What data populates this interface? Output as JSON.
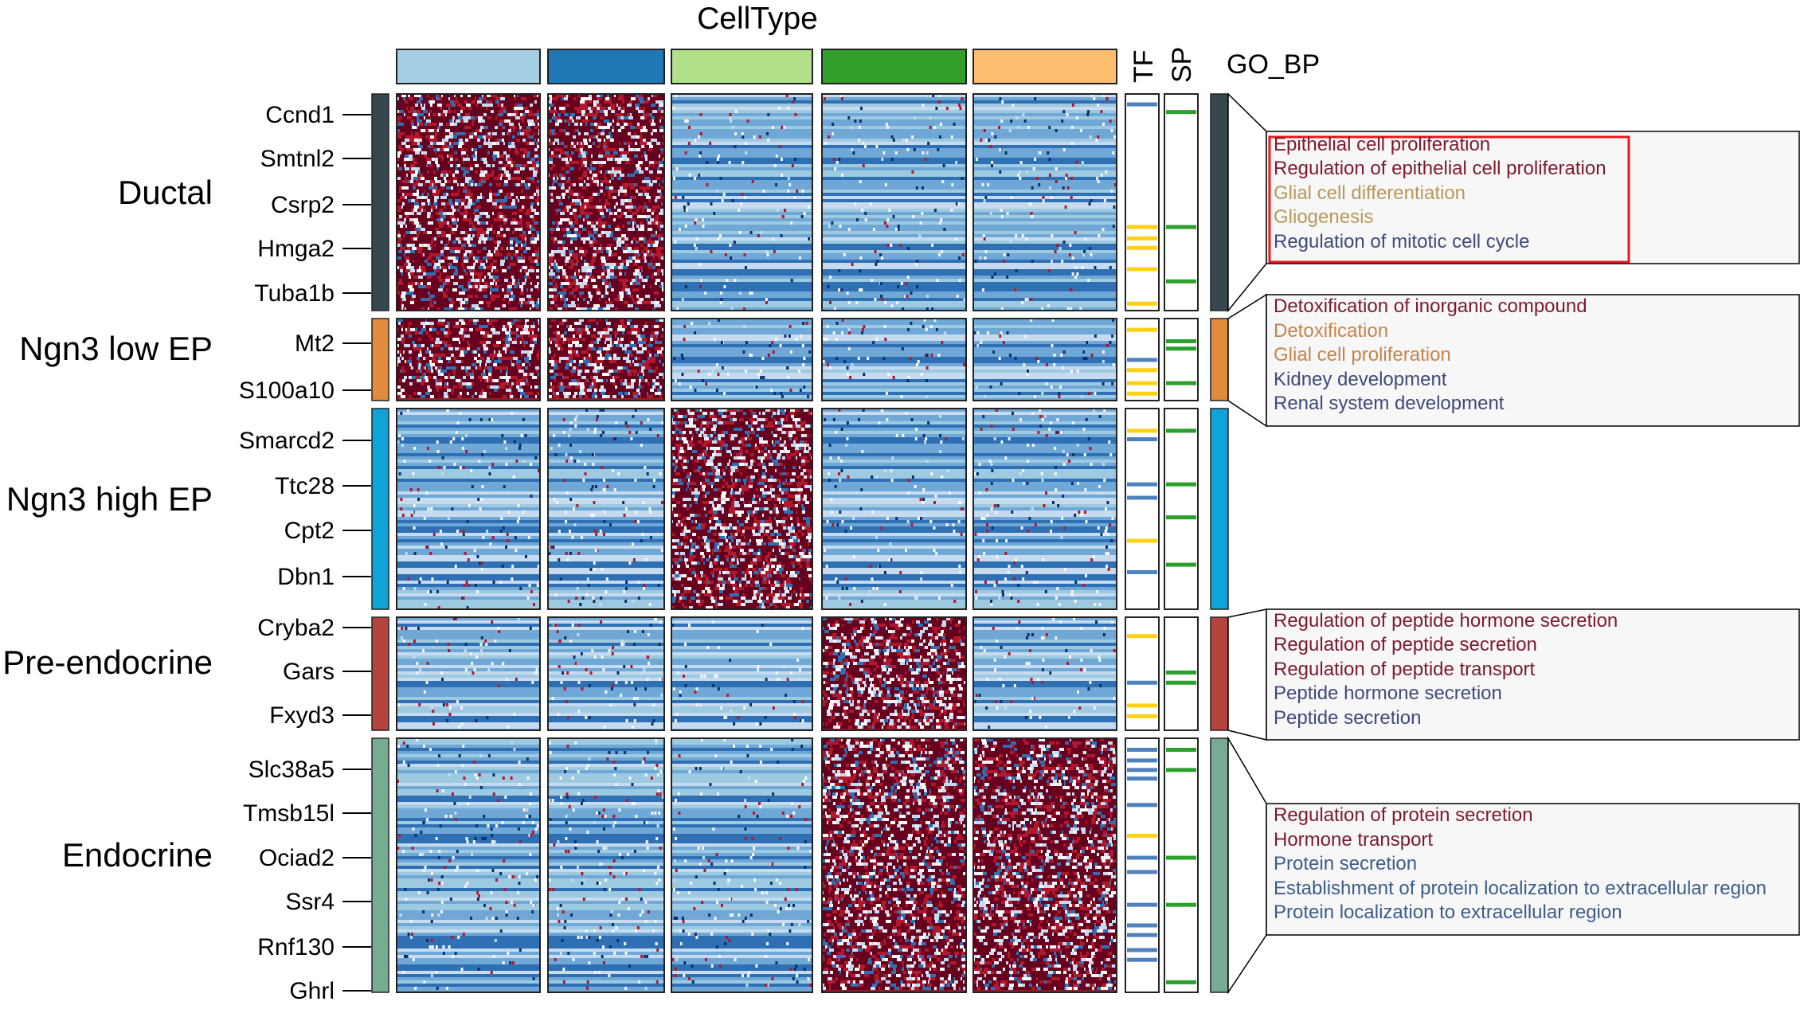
{
  "chart_data": {
    "type": "heatmap",
    "title": "CellType",
    "column_groups": [
      {
        "name": "Ductal",
        "color": "#a6cee3"
      },
      {
        "name": "Ngn3 low EP",
        "color": "#1f78b4"
      },
      {
        "name": "Ngn3 high EP",
        "color": "#b2df8a"
      },
      {
        "name": "Pre-endocrine",
        "color": "#33a02c"
      },
      {
        "name": "Endocrine",
        "color": "#fdbf6f"
      }
    ],
    "annotation_labels": {
      "tf": "TF",
      "sp": "SP",
      "go": "GO_BP"
    },
    "annotation_colors": {
      "tf_yes": "#fcd116",
      "tf_no": "#4f81bd",
      "sp": "#2ca02c"
    },
    "colorscale": [
      "#08306b",
      "#2f6fb3",
      "#6fa8d6",
      "#c6dbef",
      "#f7f7f7",
      "#f4a582",
      "#b2182b",
      "#67001f"
    ],
    "row_clusters": [
      {
        "name": "Ductal",
        "color": "#37474f",
        "high_column": [
          0,
          1
        ],
        "genes": [
          "Ccnd1",
          "Smtnl2",
          "Csrp2",
          "Hmga2",
          "Tuba1b"
        ],
        "go_terms": [
          "Epithelial cell proliferation",
          "Regulation of epithelial cell proliferation",
          "Glial cell differentiation",
          "Gliogenesis",
          "Regulation of mitotic cell cycle"
        ],
        "go_colors": [
          "#7b1a2e",
          "#7b1a2e",
          "#b8975a",
          "#b8975a",
          "#3f4a7a"
        ],
        "go_highlighted": true
      },
      {
        "name": "Ngn3 low EP",
        "color": "#e08b3d",
        "high_column": [
          0,
          1
        ],
        "genes": [
          "Mt2",
          "S100a10"
        ],
        "go_terms": [
          "Detoxification of inorganic compound",
          "Detoxification",
          "Glial cell proliferation",
          "Kidney development",
          "Renal system development"
        ],
        "go_colors": [
          "#7b1a2e",
          "#c6834a",
          "#c6834a",
          "#3f4a7a",
          "#3f4a7a"
        ],
        "go_highlighted": false
      },
      {
        "name": "Ngn3 high EP",
        "color": "#0fa3d8",
        "high_column": [
          2
        ],
        "genes": [
          "Smarcd2",
          "Ttc28",
          "Cpt2",
          "Dbn1"
        ],
        "go_terms": [],
        "go_colors": [],
        "go_highlighted": false
      },
      {
        "name": "Pre-endocrine",
        "color": "#b5443f",
        "high_column": [
          3
        ],
        "genes": [
          "Cryba2",
          "Gars",
          "Fxyd3"
        ],
        "go_terms": [
          "Regulation of peptide hormone secretion",
          "Regulation of peptide secretion",
          "Regulation of peptide transport",
          "Peptide hormone secretion",
          "Peptide secretion"
        ],
        "go_colors": [
          "#7b1a2e",
          "#7b1a2e",
          "#7b1a2e",
          "#3f4a7a",
          "#3f4a7a"
        ],
        "go_highlighted": false
      },
      {
        "name": "Endocrine",
        "color": "#76ad92",
        "high_column": [
          3,
          4
        ],
        "genes": [
          "Slc38a5",
          "Tmsb15l",
          "Ociad2",
          "Ssr4",
          "Rnf130",
          "Ghrl"
        ],
        "go_terms": [
          "Regulation of protein secretion",
          "Hormone transport",
          "Protein secretion",
          "Establishment of protein localization to extracellular region",
          "Protein localization to extracellular region"
        ],
        "go_colors": [
          "#7b1a2e",
          "#7b1a2e",
          "#3b5c8a",
          "#3b5c8a",
          "#3b5c8a"
        ],
        "go_highlighted": false
      }
    ]
  }
}
